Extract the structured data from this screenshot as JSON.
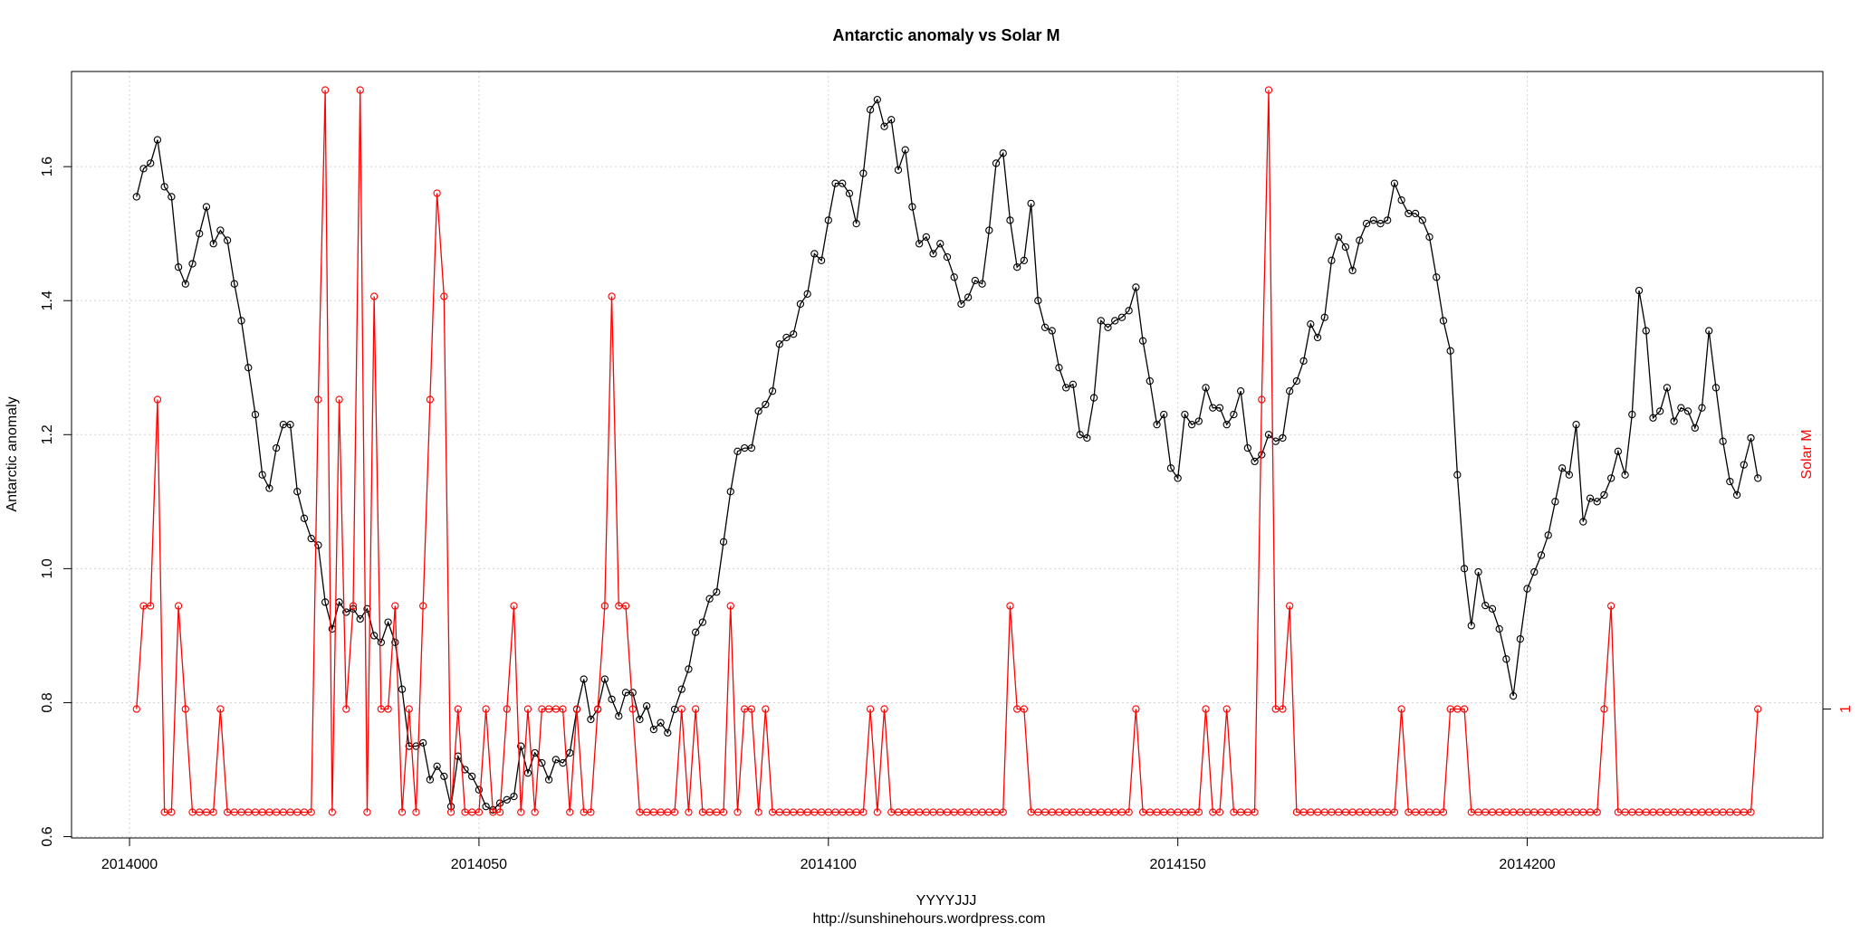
{
  "chart_data": {
    "type": "line",
    "title": "Antarctic anomaly  vs  Solar M",
    "xlabel": "YYYYJJJ",
    "ylabel": "Antarctic anomaly",
    "y2label": "Solar M",
    "footer": "http://sunshinehours.wordpress.com",
    "grid": true,
    "xlim": [
      2013991.7,
      2014242.3
    ],
    "xticks": [
      2014000,
      2014050,
      2014100,
      2014150,
      2014200
    ],
    "ylim": [
      0.598,
      1.742
    ],
    "yticks": [
      0.6,
      0.8,
      {
        "value": 1,
        "label": "1.0"
      },
      1.2,
      1.4,
      1.6
    ],
    "y2lim": [
      -0.25,
      7.18
    ],
    "y2ticks": [
      1
    ],
    "x": [
      2014001,
      2014002,
      2014003,
      2014004,
      2014005,
      2014006,
      2014007,
      2014008,
      2014009,
      2014010,
      2014011,
      2014012,
      2014013,
      2014014,
      2014015,
      2014016,
      2014017,
      2014018,
      2014019,
      2014020,
      2014021,
      2014022,
      2014023,
      2014024,
      2014025,
      2014026,
      2014027,
      2014028,
      2014029,
      2014030,
      2014031,
      2014032,
      2014033,
      2014034,
      2014035,
      2014036,
      2014037,
      2014038,
      2014039,
      2014040,
      2014041,
      2014042,
      2014043,
      2014044,
      2014045,
      2014046,
      2014047,
      2014048,
      2014049,
      2014050,
      2014051,
      2014052,
      2014053,
      2014054,
      2014055,
      2014056,
      2014057,
      2014058,
      2014059,
      2014060,
      2014061,
      2014062,
      2014063,
      2014064,
      2014065,
      2014066,
      2014067,
      2014068,
      2014069,
      2014070,
      2014071,
      2014072,
      2014073,
      2014074,
      2014075,
      2014076,
      2014077,
      2014078,
      2014079,
      2014080,
      2014081,
      2014082,
      2014083,
      2014084,
      2014085,
      2014086,
      2014087,
      2014088,
      2014089,
      2014090,
      2014091,
      2014092,
      2014093,
      2014094,
      2014095,
      2014096,
      2014097,
      2014098,
      2014099,
      2014100,
      2014101,
      2014102,
      2014103,
      2014104,
      2014105,
      2014106,
      2014107,
      2014108,
      2014109,
      2014110,
      2014111,
      2014112,
      2014113,
      2014114,
      2014115,
      2014116,
      2014117,
      2014118,
      2014119,
      2014120,
      2014121,
      2014122,
      2014123,
      2014124,
      2014125,
      2014126,
      2014127,
      2014128,
      2014129,
      2014130,
      2014131,
      2014132,
      2014133,
      2014134,
      2014135,
      2014136,
      2014137,
      2014138,
      2014139,
      2014140,
      2014141,
      2014142,
      2014143,
      2014144,
      2014145,
      2014146,
      2014147,
      2014148,
      2014149,
      2014150,
      2014151,
      2014152,
      2014153,
      2014154,
      2014155,
      2014156,
      2014157,
      2014158,
      2014159,
      2014160,
      2014161,
      2014162,
      2014163,
      2014164,
      2014165,
      2014166,
      2014167,
      2014168,
      2014169,
      2014170,
      2014171,
      2014172,
      2014173,
      2014174,
      2014175,
      2014176,
      2014177,
      2014178,
      2014179,
      2014180,
      2014181,
      2014182,
      2014183,
      2014184,
      2014185,
      2014186,
      2014187,
      2014188,
      2014189,
      2014190,
      2014191,
      2014192,
      2014193,
      2014194,
      2014195,
      2014196,
      2014197,
      2014198,
      2014199,
      2014200,
      2014201,
      2014202,
      2014203,
      2014204,
      2014205,
      2014206,
      2014207,
      2014208,
      2014209,
      2014210,
      2014211,
      2014212,
      2014213,
      2014214,
      2014215,
      2014216,
      2014217,
      2014218,
      2014219,
      2014220,
      2014221,
      2014222,
      2014223,
      2014224,
      2014225,
      2014226,
      2014227,
      2014228,
      2014229,
      2014230,
      2014231,
      2014232,
      2014233
    ],
    "series": [
      {
        "color": "#000000",
        "axis": "y",
        "values": [
          1.555,
          1.597,
          1.605,
          1.64,
          1.57,
          1.555,
          1.45,
          1.425,
          1.455,
          1.5,
          1.54,
          1.485,
          1.505,
          1.49,
          1.425,
          1.37,
          1.3,
          1.23,
          1.14,
          1.12,
          1.18,
          1.215,
          1.215,
          1.115,
          1.075,
          1.045,
          1.035,
          0.95,
          0.91,
          0.95,
          0.935,
          0.94,
          0.925,
          0.94,
          0.9,
          0.89,
          0.92,
          0.89,
          0.82,
          0.735,
          0.735,
          0.74,
          0.685,
          0.705,
          0.69,
          0.645,
          0.72,
          0.7,
          0.69,
          0.67,
          0.645,
          0.64,
          0.65,
          0.655,
          0.66,
          0.735,
          0.695,
          0.725,
          0.71,
          0.685,
          0.715,
          0.71,
          0.725,
          0.79,
          0.835,
          0.775,
          0.79,
          0.835,
          0.805,
          0.78,
          0.815,
          0.815,
          0.775,
          0.795,
          0.76,
          0.77,
          0.755,
          0.79,
          0.82,
          0.85,
          0.905,
          0.92,
          0.955,
          0.965,
          1.04,
          1.115,
          1.175,
          1.18,
          1.18,
          1.235,
          1.245,
          1.265,
          1.335,
          1.345,
          1.35,
          1.395,
          1.41,
          1.47,
          1.46,
          1.52,
          1.575,
          1.575,
          1.56,
          1.515,
          1.59,
          1.685,
          1.7,
          1.66,
          1.67,
          1.595,
          1.625,
          1.54,
          1.485,
          1.495,
          1.47,
          1.485,
          1.465,
          1.435,
          1.395,
          1.405,
          1.43,
          1.425,
          1.505,
          1.605,
          1.62,
          1.52,
          1.45,
          1.46,
          1.545,
          1.4,
          1.36,
          1.355,
          1.3,
          1.27,
          1.275,
          1.2,
          1.195,
          1.255,
          1.37,
          1.36,
          1.37,
          1.375,
          1.385,
          1.42,
          1.34,
          1.28,
          1.215,
          1.23,
          1.15,
          1.135,
          1.23,
          1.215,
          1.22,
          1.27,
          1.24,
          1.24,
          1.215,
          1.23,
          1.265,
          1.18,
          1.16,
          1.17,
          1.2,
          1.19,
          1.195,
          1.265,
          1.28,
          1.31,
          1.365,
          1.345,
          1.375,
          1.46,
          1.495,
          1.48,
          1.445,
          1.49,
          1.515,
          1.52,
          1.515,
          1.52,
          1.575,
          1.55,
          1.53,
          1.53,
          1.52,
          1.495,
          1.435,
          1.37,
          1.325,
          1.14,
          1.0,
          0.915,
          0.995,
          0.945,
          0.94,
          0.91,
          0.865,
          0.81,
          0.895,
          0.97,
          0.995,
          1.02,
          1.05,
          1.1,
          1.15,
          1.14,
          1.215,
          1.07,
          1.105,
          1.1,
          1.11,
          1.135,
          1.175,
          1.14,
          1.23,
          1.415,
          1.355,
          1.225,
          1.235,
          1.27,
          1.22,
          1.24,
          1.235,
          1.21,
          1.24,
          1.355,
          1.27,
          1.19,
          1.13,
          1.11,
          1.155,
          1.195,
          1.135
        ]
      },
      {
        "color": "#ff0000",
        "axis": "y2",
        "values": [
          1,
          2,
          2,
          4,
          0,
          0,
          2,
          1,
          0,
          0,
          0,
          0,
          1,
          0,
          0,
          0,
          0,
          0,
          0,
          0,
          0,
          0,
          0,
          0,
          0,
          0,
          4,
          7,
          0,
          4,
          1,
          2,
          7,
          0,
          5,
          1,
          1,
          2,
          0,
          1,
          0,
          2,
          4,
          6,
          5,
          0,
          1,
          0,
          0,
          0,
          1,
          0,
          0,
          1,
          2,
          0,
          1,
          0,
          1,
          1,
          1,
          1,
          0,
          1,
          0,
          0,
          1,
          2,
          5,
          2,
          2,
          1,
          0,
          0,
          0,
          0,
          0,
          0,
          1,
          0,
          1,
          0,
          0,
          0,
          0,
          2,
          0,
          1,
          1,
          0,
          1,
          0,
          0,
          0,
          0,
          0,
          0,
          0,
          0,
          0,
          0,
          0,
          0,
          0,
          0,
          1,
          0,
          1,
          0,
          0,
          0,
          0,
          0,
          0,
          0,
          0,
          0,
          0,
          0,
          0,
          0,
          0,
          0,
          0,
          0,
          2,
          1,
          1,
          0,
          0,
          0,
          0,
          0,
          0,
          0,
          0,
          0,
          0,
          0,
          0,
          0,
          0,
          0,
          1,
          0,
          0,
          0,
          0,
          0,
          0,
          0,
          0,
          0,
          1,
          0,
          0,
          1,
          0,
          0,
          0,
          0,
          4,
          7,
          1,
          1,
          2,
          0,
          0,
          0,
          0,
          0,
          0,
          0,
          0,
          0,
          0,
          0,
          0,
          0,
          0,
          0,
          1,
          0,
          0,
          0,
          0,
          0,
          0,
          1,
          1,
          1,
          0,
          0,
          0,
          0,
          0,
          0,
          0,
          0,
          0,
          0,
          0,
          0,
          0,
          0,
          0,
          0,
          0,
          0,
          0,
          1,
          2,
          0,
          0,
          0,
          0,
          0,
          0,
          0,
          0,
          0,
          0,
          0,
          0,
          0,
          0,
          0,
          0,
          0,
          0,
          0,
          0,
          1
        ]
      }
    ]
  }
}
